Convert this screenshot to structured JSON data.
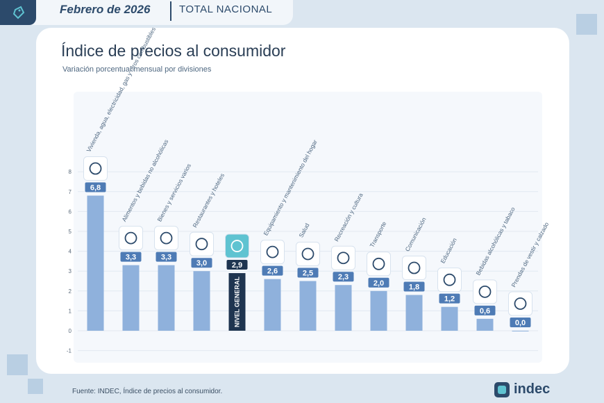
{
  "header": {
    "date": "Febrero de 2026",
    "scope": "TOTAL NACIONAL"
  },
  "title": "Índice de precios al consumidor",
  "subtitle": "Variación porcentual mensual por divisiones",
  "source": "Fuente: INDEC, Índice de precios al consumidor.",
  "logo_text": "indec",
  "colors": {
    "bar": "#8fb1dc",
    "highlight_bar": "#1f3550",
    "label_bg": "#4e7bb5",
    "highlight_label_bg": "#1f3550",
    "icon_bg": "#ffffff"
  },
  "chart_data": {
    "type": "bar",
    "title": "Índice de precios al consumidor",
    "ylim": [
      -1,
      8
    ],
    "yticks": [
      "8",
      "7",
      "6",
      "5",
      "4",
      "3",
      "2",
      "1",
      "0",
      "-1"
    ],
    "ytick_values": [
      8,
      7,
      6,
      5,
      4,
      3,
      2,
      1,
      0,
      -1
    ],
    "categories": [
      "Vivienda, agua, electricidad, gas y otros combustibles",
      "Alimentos y bebidas no alcohólicas",
      "Bienes y servicios varios",
      "Restaurantes y hoteles",
      "NIVEL GENERAL",
      "Equipamiento y mantenimiento del hogar",
      "Salud",
      "Recreación y cultura",
      "Transporte",
      "Comunicación",
      "Educación",
      "Bebidas alcohólicas y tabaco",
      "Prendas de vestir y calzado"
    ],
    "values": [
      6.8,
      3.3,
      3.3,
      3.0,
      2.9,
      2.6,
      2.5,
      2.3,
      2.0,
      1.8,
      1.2,
      0.6,
      0.0
    ],
    "value_labels": [
      "6,8",
      "3,3",
      "3,3",
      "3,0",
      "2,9",
      "2,6",
      "2,5",
      "2,3",
      "2,0",
      "1,8",
      "1,2",
      "0,6",
      "0,0"
    ],
    "icons": [
      "house-bolt-icon",
      "groceries-icon",
      "cleaning-products-icon",
      "restaurant-icon",
      "basket-icon",
      "tools-icon",
      "health-cross-icon",
      "theater-masks-icon",
      "car-icon",
      "wifi-icon",
      "book-icon",
      "bottle-glass-icon",
      "tshirt-icon"
    ],
    "highlight_index": 4,
    "highlight_text": "NIVEL GENERAL"
  }
}
